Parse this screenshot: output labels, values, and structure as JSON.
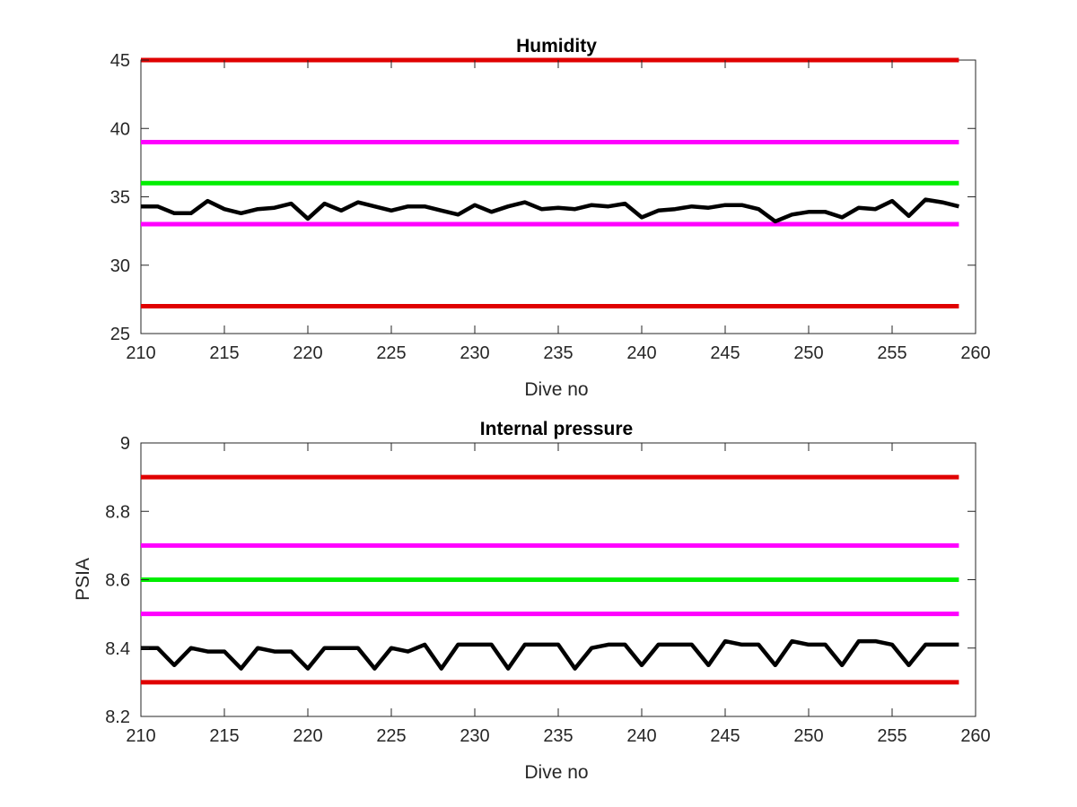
{
  "chart_data": [
    {
      "type": "line",
      "title": "Humidity",
      "xlabel": "Dive no",
      "ylabel": "",
      "xlim": [
        210,
        260
      ],
      "ylim": [
        25,
        45
      ],
      "xticks": [
        210,
        215,
        220,
        225,
        230,
        235,
        240,
        245,
        250,
        255,
        260
      ],
      "yticks": [
        25,
        30,
        35,
        40,
        45
      ],
      "grid": false,
      "thresholds": [
        {
          "value": 45,
          "color": "#e00000"
        },
        {
          "value": 39,
          "color": "#ff00ff"
        },
        {
          "value": 36,
          "color": "#00ee00"
        },
        {
          "value": 33,
          "color": "#ff00ff"
        },
        {
          "value": 27,
          "color": "#e00000"
        }
      ],
      "series": [
        {
          "color": "#000000",
          "x": [
            210,
            211,
            212,
            213,
            214,
            215,
            216,
            217,
            218,
            219,
            220,
            221,
            222,
            223,
            224,
            225,
            226,
            227,
            228,
            229,
            230,
            231,
            232,
            233,
            234,
            235,
            236,
            237,
            238,
            239,
            240,
            241,
            242,
            243,
            244,
            245,
            246,
            247,
            248,
            249,
            250,
            251,
            252,
            253,
            254,
            255,
            256,
            257,
            258,
            259
          ],
          "values": [
            34.3,
            34.3,
            33.8,
            33.8,
            34.7,
            34.1,
            33.8,
            34.1,
            34.2,
            34.5,
            33.4,
            34.5,
            34.0,
            34.6,
            34.3,
            34.0,
            34.3,
            34.3,
            34.0,
            33.7,
            34.4,
            33.9,
            34.3,
            34.6,
            34.1,
            34.2,
            34.1,
            34.4,
            34.3,
            34.5,
            33.5,
            34.0,
            34.1,
            34.3,
            34.2,
            34.4,
            34.4,
            34.1,
            33.2,
            33.7,
            33.9,
            33.9,
            33.5,
            34.2,
            34.1,
            34.7,
            33.6,
            34.8,
            34.6,
            34.3
          ]
        }
      ]
    },
    {
      "type": "line",
      "title": "Internal pressure",
      "xlabel": "Dive no",
      "ylabel": "PSIA",
      "xlim": [
        210,
        260
      ],
      "ylim": [
        8.2,
        9
      ],
      "xticks": [
        210,
        215,
        220,
        225,
        230,
        235,
        240,
        245,
        250,
        255,
        260
      ],
      "yticks": [
        8.2,
        8.4,
        8.6,
        8.8,
        9
      ],
      "grid": false,
      "thresholds": [
        {
          "value": 8.9,
          "color": "#e00000"
        },
        {
          "value": 8.7,
          "color": "#ff00ff"
        },
        {
          "value": 8.6,
          "color": "#00ee00"
        },
        {
          "value": 8.5,
          "color": "#ff00ff"
        },
        {
          "value": 8.3,
          "color": "#e00000"
        }
      ],
      "series": [
        {
          "color": "#000000",
          "x": [
            210,
            211,
            212,
            213,
            214,
            215,
            216,
            217,
            218,
            219,
            220,
            221,
            222,
            223,
            224,
            225,
            226,
            227,
            228,
            229,
            230,
            231,
            232,
            233,
            234,
            235,
            236,
            237,
            238,
            239,
            240,
            241,
            242,
            243,
            244,
            245,
            246,
            247,
            248,
            249,
            250,
            251,
            252,
            253,
            254,
            255,
            256,
            257,
            258,
            259
          ],
          "values": [
            8.4,
            8.4,
            8.35,
            8.4,
            8.39,
            8.39,
            8.34,
            8.4,
            8.39,
            8.39,
            8.34,
            8.4,
            8.4,
            8.4,
            8.34,
            8.4,
            8.39,
            8.41,
            8.34,
            8.41,
            8.41,
            8.41,
            8.34,
            8.41,
            8.41,
            8.41,
            8.34,
            8.4,
            8.41,
            8.41,
            8.35,
            8.41,
            8.41,
            8.41,
            8.35,
            8.42,
            8.41,
            8.41,
            8.35,
            8.42,
            8.41,
            8.41,
            8.35,
            8.42,
            8.42,
            8.41,
            8.35,
            8.41,
            8.41,
            8.41
          ]
        }
      ]
    }
  ]
}
